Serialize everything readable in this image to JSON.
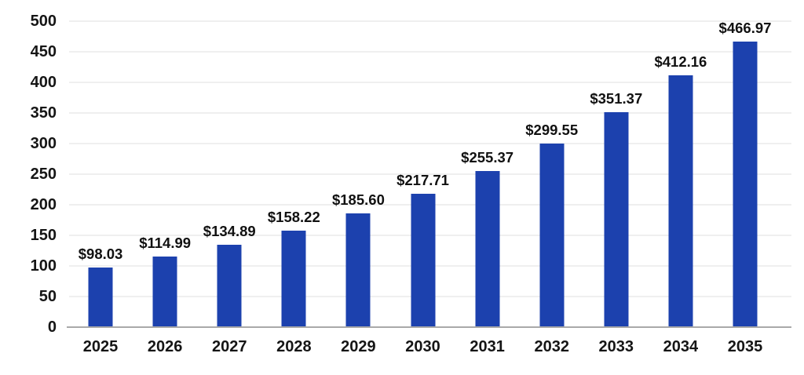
{
  "chart_data": {
    "type": "bar",
    "title": "",
    "xlabel": "",
    "ylabel": "",
    "categories": [
      "2025",
      "2026",
      "2027",
      "2028",
      "2029",
      "2030",
      "2031",
      "2032",
      "2033",
      "2034",
      "2035"
    ],
    "values": [
      98.03,
      114.99,
      134.89,
      158.22,
      185.6,
      217.71,
      255.37,
      299.55,
      351.37,
      412.16,
      466.97
    ],
    "value_labels": [
      "$98.03",
      "$114.99",
      "$134.89",
      "$158.22",
      "$185.60",
      "$217.71",
      "$255.37",
      "$299.55",
      "$351.37",
      "$412.16",
      "$466.97"
    ],
    "ylim": [
      0,
      500
    ],
    "y_ticks": [
      0,
      50,
      100,
      150,
      200,
      250,
      300,
      350,
      400,
      450,
      500
    ],
    "grid": true,
    "legend": "none",
    "colors": {
      "bar": "#1c41ae",
      "value_label_text": "#111111",
      "axis_tick_text": "#151515",
      "gridline": "#efefef",
      "baseline": "#a9a9a9",
      "background": "#ffffff"
    }
  }
}
